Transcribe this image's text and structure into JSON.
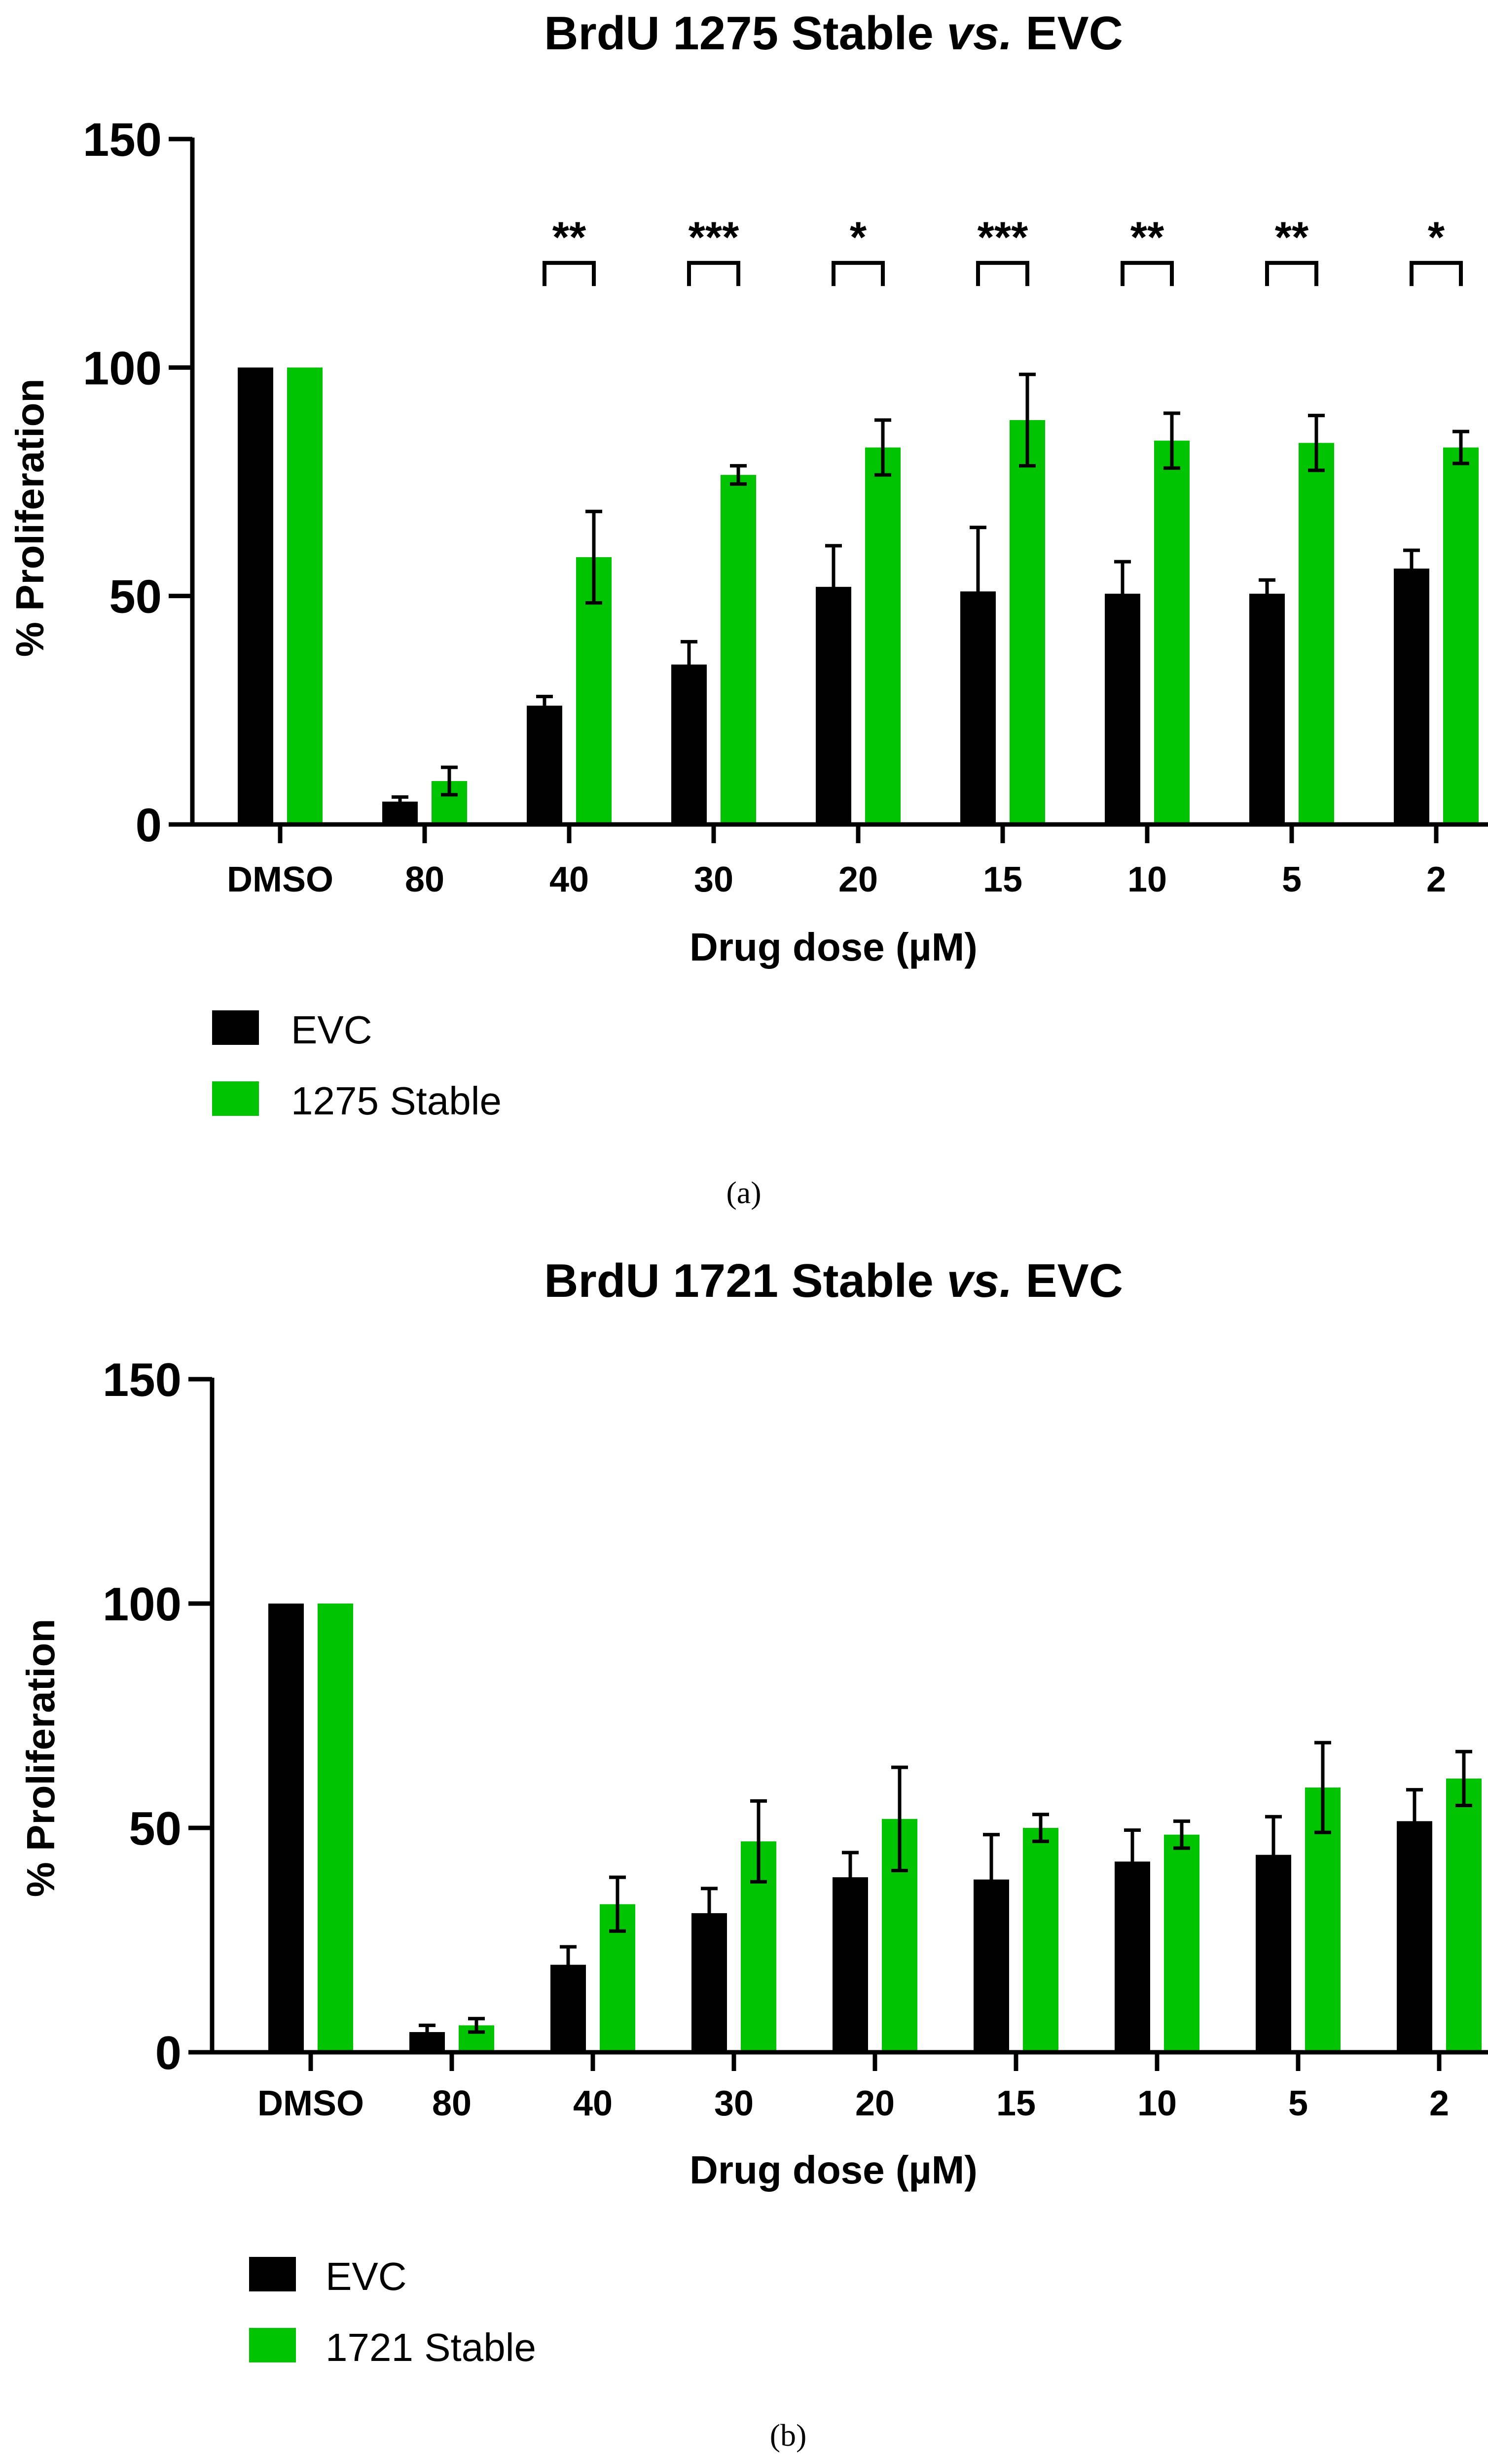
{
  "figure": {
    "panel_labels": [
      "(a)",
      "(b)"
    ]
  },
  "chart_data": [
    {
      "type": "bar",
      "title": "BrdU 1275 Stable vs. EVC",
      "title_parts": [
        "BrdU 1275 Stable ",
        "vs.",
        " EVC"
      ],
      "xlabel": "Drug dose (µM)",
      "ylabel": "% Proliferation",
      "ylim": [
        0,
        150
      ],
      "yticks": [
        0,
        50,
        100,
        150
      ],
      "categories": [
        "DMSO",
        "80",
        "40",
        "30",
        "20",
        "15",
        "10",
        "5",
        "2"
      ],
      "series": [
        {
          "name": "EVC",
          "color": "#000000",
          "values": [
            100,
            5,
            26,
            35,
            52,
            51,
            50.5,
            50.5,
            56
          ],
          "errors": [
            0,
            1,
            2,
            5,
            9,
            14,
            7,
            3,
            4
          ]
        },
        {
          "name": "1275 Stable",
          "color": "#00c400",
          "values": [
            100,
            9.5,
            58.5,
            76.5,
            82.5,
            88.5,
            84,
            83.5,
            82.5
          ],
          "errors": [
            0,
            3,
            10,
            2,
            6,
            10,
            6,
            6,
            3.5
          ]
        }
      ],
      "significance": [
        {
          "category": "40",
          "label": "**"
        },
        {
          "category": "30",
          "label": "***"
        },
        {
          "category": "20",
          "label": "*"
        },
        {
          "category": "15",
          "label": "***"
        },
        {
          "category": "10",
          "label": "**"
        },
        {
          "category": "5",
          "label": "**"
        },
        {
          "category": "2",
          "label": "*"
        }
      ],
      "legend_placement": "bottom-left"
    },
    {
      "type": "bar",
      "title": "BrdU 1721 Stable vs. EVC",
      "title_parts": [
        "BrdU 1721 Stable ",
        "vs.",
        " EVC"
      ],
      "xlabel": "Drug dose (µM)",
      "ylabel": "% Proliferation",
      "ylim": [
        0,
        150
      ],
      "yticks": [
        0,
        50,
        100,
        150
      ],
      "categories": [
        "DMSO",
        "80",
        "40",
        "30",
        "20",
        "15",
        "10",
        "5",
        "2"
      ],
      "series": [
        {
          "name": "EVC",
          "color": "#000000",
          "values": [
            100,
            4.5,
            19.5,
            31,
            39,
            38.5,
            42.5,
            44,
            51.5
          ],
          "errors": [
            0,
            1.5,
            4,
            5.5,
            5.5,
            10,
            7,
            8.5,
            7
          ]
        },
        {
          "name": "1721 Stable",
          "color": "#00c400",
          "values": [
            100,
            6,
            33,
            47,
            52,
            50,
            48.5,
            59,
            61
          ],
          "errors": [
            0,
            1.5,
            6,
            9,
            11.5,
            3,
            3,
            10,
            6
          ]
        }
      ],
      "significance": [],
      "legend_placement": "bottom-left"
    }
  ]
}
